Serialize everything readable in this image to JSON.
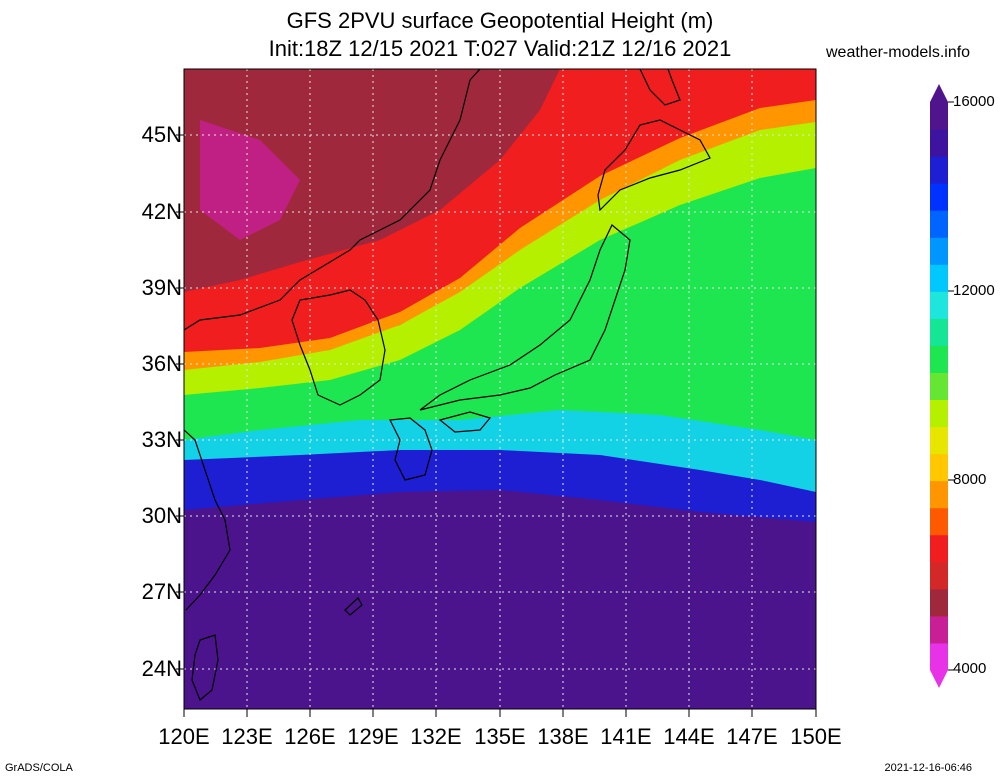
{
  "title": {
    "line1": "GFS 2PVU surface Geopotential Height (m)",
    "line2": "Init:18Z 12/15 2021 T:027 Valid:21Z 12/16 2021"
  },
  "site": "weather-models.info",
  "lat_labels": [
    "45N",
    "42N",
    "39N",
    "36N",
    "33N",
    "30N",
    "27N",
    "24N"
  ],
  "lon_labels": [
    "120E",
    "123E",
    "126E",
    "129E",
    "132E",
    "135E",
    "138E",
    "141E",
    "144E",
    "147E",
    "150E"
  ],
  "colorbar": {
    "labels": [
      "16000",
      "12000",
      "8000",
      "4000"
    ],
    "colors": [
      "#e832e8",
      "#c81e96",
      "#a0283c",
      "#d22828",
      "#f01e1e",
      "#ff5a00",
      "#ff9600",
      "#ffc800",
      "#e6e600",
      "#b4f000",
      "#64e632",
      "#1ee650",
      "#14e696",
      "#1ee6dc",
      "#00c8ff",
      "#0096ff",
      "#0064ff",
      "#0032ff",
      "#1e1ed2",
      "#3c14a0",
      "#50148c"
    ]
  },
  "footer": {
    "left": "GrADS/COLA",
    "right": "2021-12-16-06:46"
  }
}
